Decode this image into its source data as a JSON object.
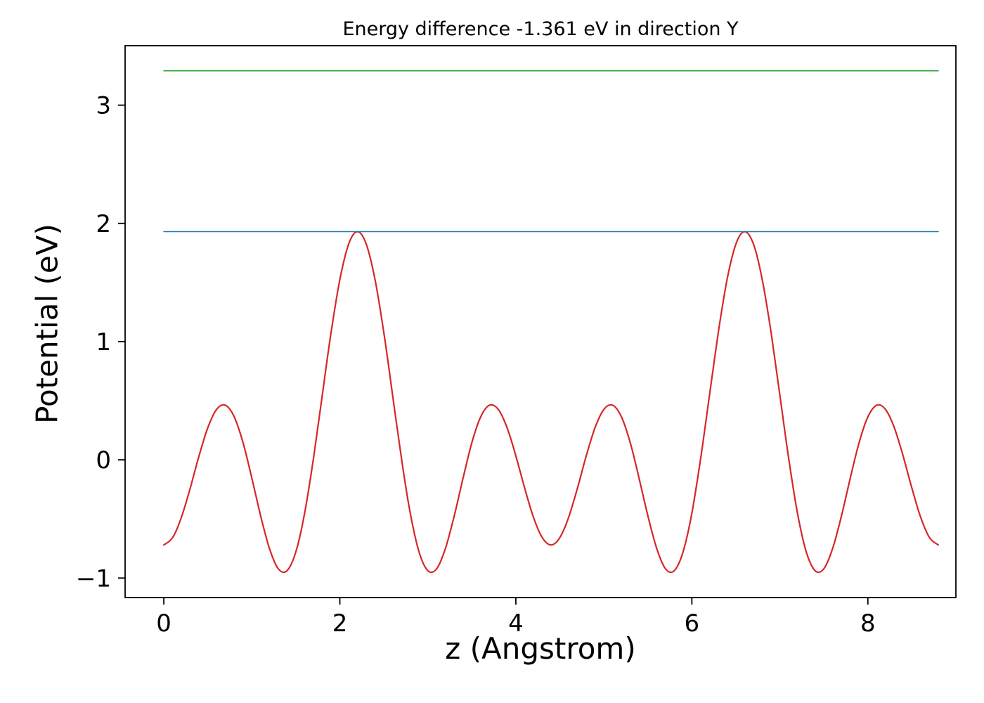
{
  "figure": {
    "background": "#ffffff",
    "axes_edge_color": "#000000"
  },
  "chart_data": {
    "type": "line",
    "title": "Energy difference -1.361 eV in direction Y",
    "xlabel": "z (Angstrom)",
    "ylabel": "Potential (eV)",
    "xlim": [
      -0.44,
      9.0
    ],
    "ylim": [
      -1.165,
      3.503
    ],
    "grid": false,
    "legend": "none",
    "xticks": {
      "values": [
        0,
        2,
        4,
        6,
        8
      ],
      "labels": [
        "0",
        "2",
        "4",
        "6",
        "8"
      ]
    },
    "yticks": {
      "values": [
        -1,
        0,
        1,
        2,
        3
      ],
      "labels": [
        "−1",
        "0",
        "1",
        "2",
        "3"
      ]
    },
    "series": [
      {
        "name": "potential-curve",
        "color": "#d62728",
        "line_width": 2.2,
        "x_start": 0.0,
        "x_step": 0.1,
        "y": [
          -0.72,
          -0.658,
          -0.486,
          -0.239,
          0.034,
          0.272,
          0.427,
          0.462,
          0.363,
          0.145,
          -0.155,
          -0.474,
          -0.749,
          -0.921,
          -0.938,
          -0.779,
          -0.451,
          0.012,
          0.545,
          1.076,
          1.524,
          1.825,
          1.93,
          1.825,
          1.524,
          1.076,
          0.545,
          0.012,
          -0.451,
          -0.779,
          -0.938,
          -0.921,
          -0.749,
          -0.474,
          -0.155,
          0.145,
          0.363,
          0.462,
          0.427,
          0.272,
          0.034,
          -0.239,
          -0.486,
          -0.658,
          -0.72,
          -0.658,
          -0.486,
          -0.239,
          0.034,
          0.272,
          0.427,
          0.462,
          0.363,
          0.145,
          -0.155,
          -0.474,
          -0.749,
          -0.921,
          -0.938,
          -0.779,
          -0.451,
          0.012,
          0.545,
          1.076,
          1.524,
          1.825,
          1.93,
          1.825,
          1.524,
          1.076,
          0.545,
          0.012,
          -0.451,
          -0.779,
          -0.938,
          -0.921,
          -0.749,
          -0.474,
          -0.155,
          0.145,
          0.363,
          0.462,
          0.427,
          0.272,
          0.034,
          -0.239,
          -0.486,
          -0.658,
          -0.72
        ]
      },
      {
        "name": "level-blue",
        "color": "#1f77b4",
        "line_width": 1.6,
        "x": [
          0.0,
          8.8
        ],
        "y": [
          1.93,
          1.93
        ]
      },
      {
        "name": "level-green",
        "color": "#2ca02c",
        "line_width": 1.6,
        "x": [
          0.0,
          8.8
        ],
        "y": [
          3.291,
          3.291
        ]
      }
    ]
  }
}
